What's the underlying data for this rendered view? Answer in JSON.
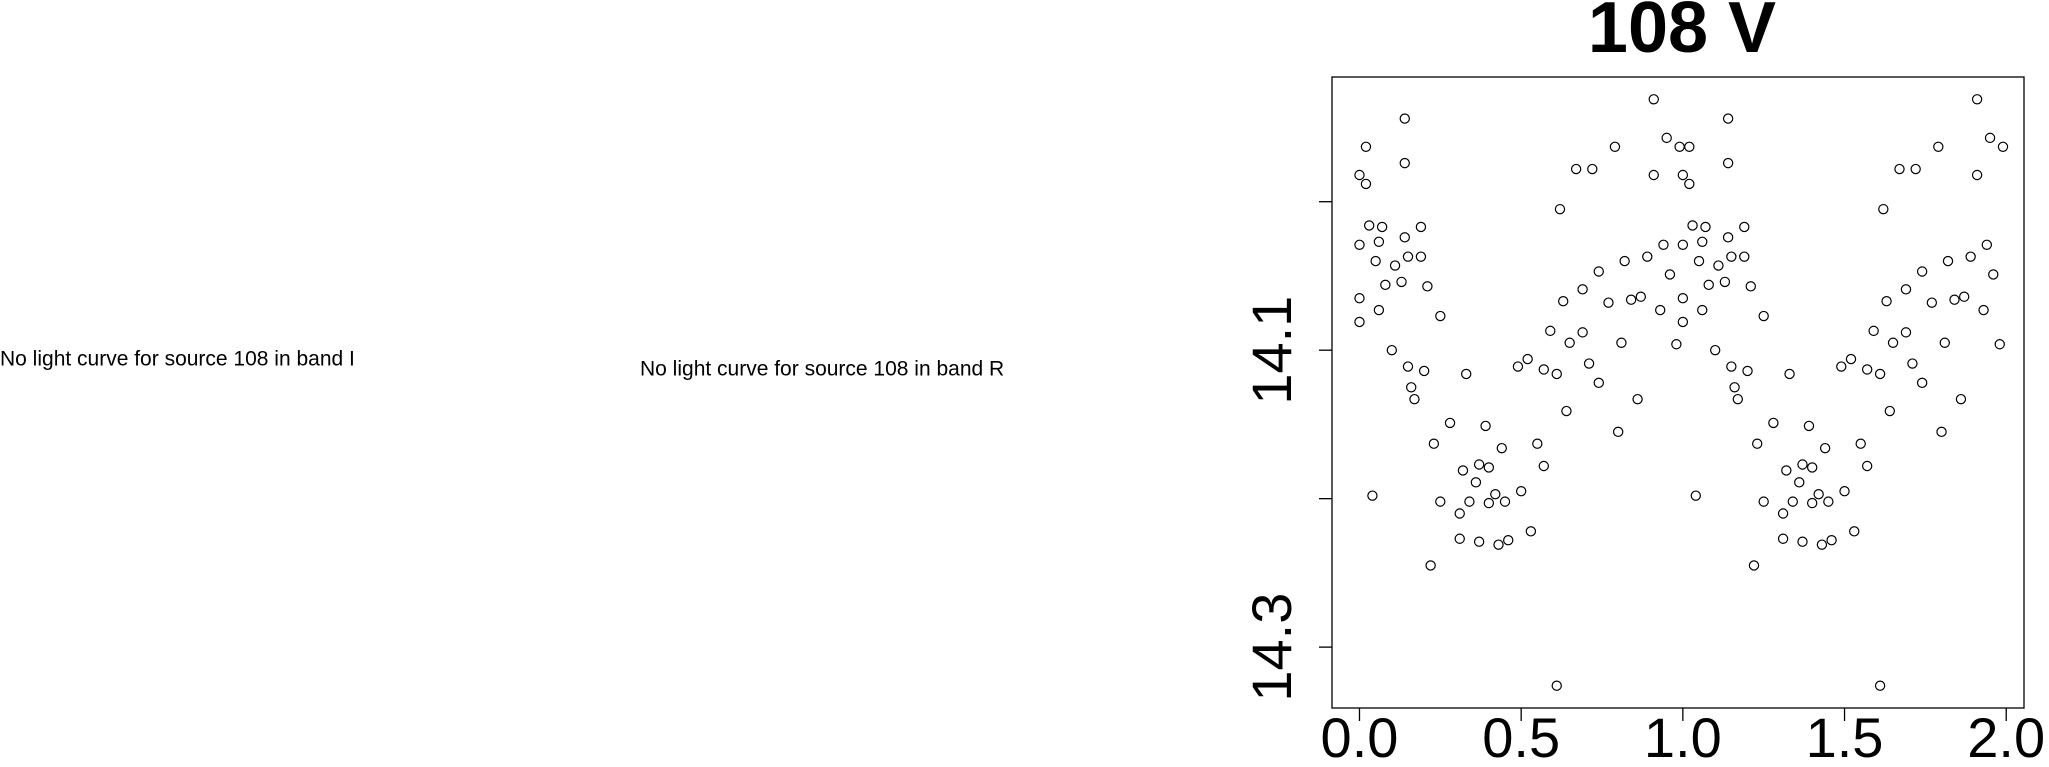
{
  "messages": [
    "No light curve for source 108 in band I",
    "No light curve for source 108 in band R"
  ],
  "chart_data": {
    "type": "scatter",
    "title": "108 V",
    "xlim": [
      -0.085,
      2.055
    ],
    "ylim": [
      14.341,
      13.916
    ],
    "xticks": [
      {
        "value": 0,
        "label": "0.0"
      },
      0.5,
      {
        "value": 1,
        "label": "1.0"
      },
      1.5,
      {
        "value": 2,
        "label": "2.0"
      }
    ],
    "yticks": [
      {
        "value": 14.0,
        "label": null
      },
      14.1,
      {
        "value": 14.2,
        "label": null
      },
      14.3
    ],
    "series": [
      {
        "color": "#000000",
        "x": [
          0.0,
          0.0,
          0.0,
          0.0,
          0.02,
          0.02,
          0.03,
          0.04,
          0.05,
          0.06,
          0.06,
          0.07,
          0.08,
          0.1,
          0.11,
          0.13,
          0.14,
          0.14,
          0.14,
          0.15,
          0.15,
          0.16,
          0.17,
          0.19,
          0.19,
          0.2,
          0.21,
          0.22,
          0.23,
          0.25,
          0.25,
          0.28,
          0.31,
          0.31,
          0.32,
          0.33,
          0.34,
          0.36,
          0.37,
          0.37,
          0.39,
          0.4,
          0.4,
          0.42,
          0.43,
          0.44,
          0.45,
          0.46,
          0.49,
          0.5,
          0.52,
          0.53,
          0.55,
          0.57,
          0.57,
          0.59,
          0.61,
          0.61,
          0.62,
          0.63,
          0.64,
          0.65,
          0.67,
          0.69,
          0.69,
          0.71,
          0.72,
          0.74,
          0.74,
          0.77,
          0.79,
          0.8,
          0.81,
          0.82,
          0.84,
          0.86,
          0.87,
          0.89,
          0.91,
          0.91,
          0.93,
          0.94,
          0.95,
          0.96,
          0.98,
          0.99,
          1.0,
          1.0,
          1.0,
          1.0,
          1.02,
          1.02,
          1.03,
          1.04,
          1.05,
          1.06,
          1.06,
          1.07,
          1.08,
          1.1,
          1.11,
          1.13,
          1.14,
          1.14,
          1.14,
          1.15,
          1.15,
          1.16,
          1.17,
          1.19,
          1.19,
          1.2,
          1.21,
          1.22,
          1.23,
          1.25,
          1.25,
          1.28,
          1.31,
          1.31,
          1.32,
          1.33,
          1.34,
          1.36,
          1.37,
          1.37,
          1.39,
          1.4,
          1.4,
          1.42,
          1.43,
          1.44,
          1.45,
          1.46,
          1.49,
          1.5,
          1.52,
          1.53,
          1.55,
          1.57,
          1.57,
          1.59,
          1.61,
          1.61,
          1.62,
          1.63,
          1.64,
          1.65,
          1.67,
          1.69,
          1.69,
          1.71,
          1.72,
          1.74,
          1.74,
          1.77,
          1.79,
          1.8,
          1.81,
          1.82,
          1.84,
          1.86,
          1.87,
          1.89,
          1.91,
          1.91,
          1.93,
          1.94,
          1.95,
          1.96,
          1.98,
          1.99
        ],
        "values": [
          13.982,
          14.029,
          14.065,
          14.081,
          13.963,
          13.988,
          14.016,
          14.198,
          14.04,
          14.027,
          14.073,
          14.017,
          14.056,
          14.1,
          14.043,
          14.054,
          13.944,
          13.974,
          14.024,
          14.037,
          14.111,
          14.125,
          14.133,
          14.017,
          14.037,
          14.114,
          14.057,
          14.245,
          14.163,
          14.202,
          14.077,
          14.149,
          14.21,
          14.227,
          14.181,
          14.116,
          14.202,
          14.189,
          14.177,
          14.229,
          14.151,
          14.203,
          14.179,
          14.197,
          14.231,
          14.166,
          14.202,
          14.228,
          14.111,
          14.195,
          14.106,
          14.222,
          14.163,
          14.113,
          14.178,
          14.087,
          14.116,
          14.326,
          14.005,
          14.067,
          14.141,
          14.095,
          13.978,
          14.088,
          14.059,
          14.109,
          13.978,
          14.047,
          14.122,
          14.068,
          13.963,
          14.155,
          14.095,
          14.04,
          14.066,
          14.133,
          14.064,
          14.037,
          13.931,
          13.982,
          14.073,
          14.029,
          13.957,
          14.049,
          14.096,
          13.963,
          13.982,
          14.029,
          14.065,
          14.081,
          13.963,
          13.988,
          14.016,
          14.198,
          14.04,
          14.027,
          14.073,
          14.017,
          14.056,
          14.1,
          14.043,
          14.054,
          13.944,
          13.974,
          14.024,
          14.037,
          14.111,
          14.125,
          14.133,
          14.017,
          14.037,
          14.114,
          14.057,
          14.245,
          14.163,
          14.202,
          14.077,
          14.149,
          14.21,
          14.227,
          14.181,
          14.116,
          14.202,
          14.189,
          14.177,
          14.229,
          14.151,
          14.203,
          14.179,
          14.197,
          14.231,
          14.166,
          14.202,
          14.228,
          14.111,
          14.195,
          14.106,
          14.222,
          14.163,
          14.113,
          14.178,
          14.087,
          14.116,
          14.326,
          14.005,
          14.067,
          14.141,
          14.095,
          13.978,
          14.088,
          14.059,
          14.109,
          13.978,
          14.047,
          14.122,
          14.068,
          13.963,
          14.155,
          14.095,
          14.04,
          14.066,
          14.133,
          14.064,
          14.037,
          13.931,
          13.982,
          14.073,
          14.029,
          13.957,
          14.049,
          14.096,
          13.963
        ]
      }
    ]
  }
}
